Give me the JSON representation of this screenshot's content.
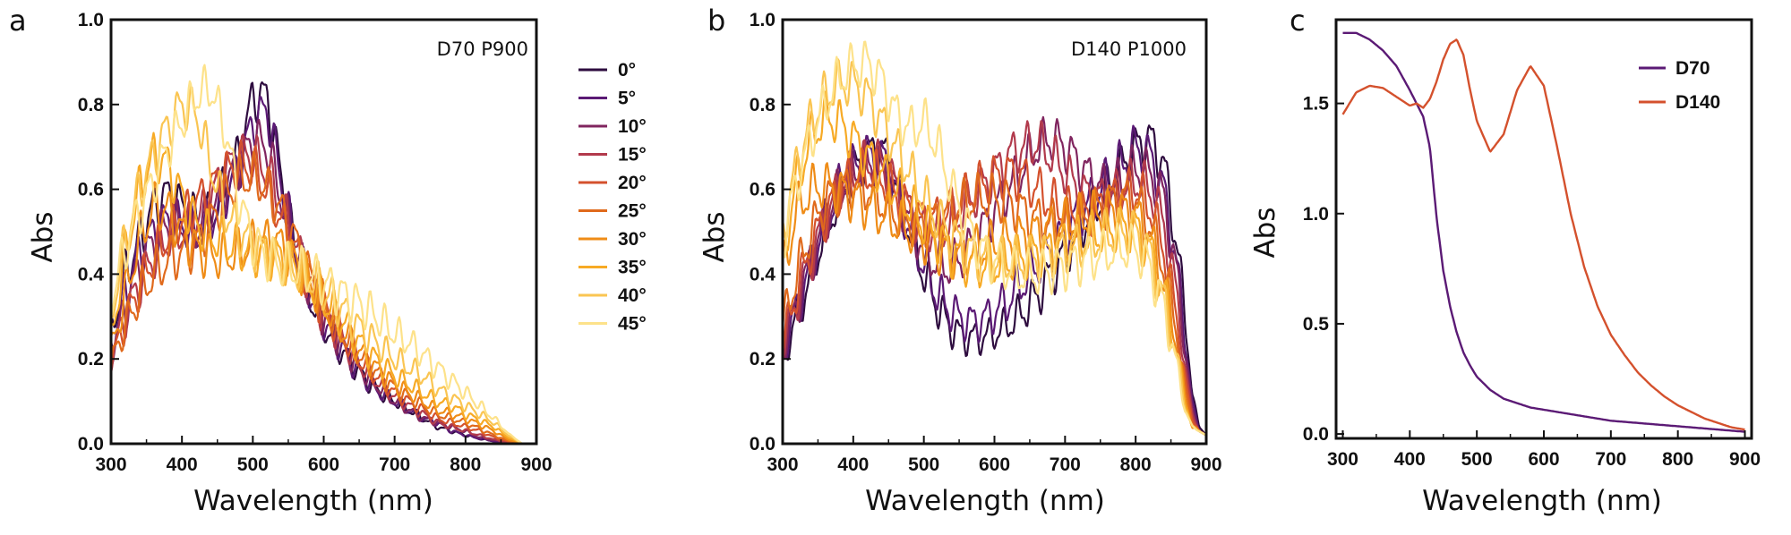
{
  "colors": {
    "angles": [
      "#2e0c3f",
      "#5b1a75",
      "#80255f",
      "#b23a4c",
      "#d4512d",
      "#e06a1c",
      "#ef8c17",
      "#f7aa25",
      "#fac552",
      "#fde28a"
    ],
    "d70": "#5b1a75",
    "d140": "#d4512d"
  },
  "chart_data": [
    {
      "type": "line",
      "panel": "a",
      "annotation": "D70 P900",
      "xlabel": "Wavelength (nm)",
      "ylabel": "Abs",
      "xlim": [
        300,
        900
      ],
      "ylim": [
        0,
        1.0
      ],
      "xticks": [
        "300",
        "400",
        "500",
        "600",
        "700",
        "800",
        "900"
      ],
      "yticks": [
        "0.0",
        "0.2",
        "0.4",
        "0.6",
        "0.8",
        "1.0"
      ],
      "legend": "outside-right",
      "x": [
        300,
        320,
        340,
        360,
        380,
        400,
        420,
        440,
        460,
        480,
        500,
        520,
        540,
        560,
        580,
        600,
        620,
        640,
        660,
        680,
        700,
        720,
        740,
        760,
        780,
        800,
        820,
        840,
        860,
        880
      ],
      "series": [
        {
          "name": "0°",
          "values": [
            0.26,
            0.4,
            0.48,
            0.56,
            0.59,
            0.56,
            0.53,
            0.53,
            0.6,
            0.68,
            0.82,
            0.82,
            0.63,
            0.45,
            0.35,
            0.28,
            0.23,
            0.19,
            0.15,
            0.12,
            0.1,
            0.08,
            0.06,
            0.04,
            0.03,
            0.02,
            0.012,
            0.006,
            0.002,
            0.0
          ]
        },
        {
          "name": "5°",
          "values": [
            0.23,
            0.36,
            0.45,
            0.5,
            0.53,
            0.52,
            0.49,
            0.52,
            0.58,
            0.65,
            0.76,
            0.79,
            0.62,
            0.46,
            0.36,
            0.29,
            0.24,
            0.19,
            0.15,
            0.12,
            0.1,
            0.08,
            0.06,
            0.05,
            0.03,
            0.02,
            0.012,
            0.006,
            0.002,
            0.0
          ]
        },
        {
          "name": "10°",
          "values": [
            0.21,
            0.32,
            0.42,
            0.48,
            0.52,
            0.52,
            0.5,
            0.54,
            0.6,
            0.66,
            0.72,
            0.7,
            0.58,
            0.46,
            0.37,
            0.3,
            0.25,
            0.2,
            0.16,
            0.13,
            0.1,
            0.08,
            0.06,
            0.05,
            0.04,
            0.03,
            0.015,
            0.008,
            0.003,
            0.0
          ]
        },
        {
          "name": "15°",
          "values": [
            0.2,
            0.3,
            0.38,
            0.44,
            0.48,
            0.5,
            0.52,
            0.58,
            0.64,
            0.68,
            0.68,
            0.64,
            0.56,
            0.47,
            0.38,
            0.31,
            0.26,
            0.21,
            0.17,
            0.14,
            0.11,
            0.09,
            0.07,
            0.05,
            0.04,
            0.03,
            0.02,
            0.01,
            0.003,
            0.0
          ]
        },
        {
          "name": "20°",
          "values": [
            0.19,
            0.29,
            0.37,
            0.44,
            0.49,
            0.53,
            0.57,
            0.6,
            0.64,
            0.66,
            0.65,
            0.6,
            0.53,
            0.46,
            0.39,
            0.32,
            0.27,
            0.22,
            0.18,
            0.15,
            0.12,
            0.1,
            0.08,
            0.06,
            0.05,
            0.04,
            0.03,
            0.015,
            0.005,
            0.0
          ]
        },
        {
          "name": "25°",
          "values": [
            0.19,
            0.28,
            0.35,
            0.4,
            0.43,
            0.45,
            0.47,
            0.52,
            0.58,
            0.62,
            0.63,
            0.6,
            0.55,
            0.48,
            0.4,
            0.33,
            0.28,
            0.23,
            0.19,
            0.16,
            0.13,
            0.11,
            0.09,
            0.07,
            0.06,
            0.05,
            0.035,
            0.02,
            0.007,
            0.0
          ]
        },
        {
          "name": "30°",
          "values": [
            0.22,
            0.35,
            0.48,
            0.56,
            0.55,
            0.5,
            0.46,
            0.44,
            0.44,
            0.45,
            0.47,
            0.48,
            0.47,
            0.43,
            0.38,
            0.33,
            0.28,
            0.24,
            0.2,
            0.17,
            0.14,
            0.12,
            0.1,
            0.08,
            0.07,
            0.06,
            0.045,
            0.03,
            0.01,
            0.0
          ]
        },
        {
          "name": "35°",
          "values": [
            0.25,
            0.45,
            0.6,
            0.68,
            0.66,
            0.58,
            0.52,
            0.49,
            0.47,
            0.46,
            0.45,
            0.45,
            0.44,
            0.42,
            0.38,
            0.34,
            0.3,
            0.26,
            0.22,
            0.19,
            0.16,
            0.14,
            0.12,
            0.1,
            0.09,
            0.07,
            0.055,
            0.04,
            0.015,
            0.0
          ]
        },
        {
          "name": "40°",
          "values": [
            0.3,
            0.48,
            0.6,
            0.68,
            0.75,
            0.8,
            0.78,
            0.66,
            0.55,
            0.5,
            0.47,
            0.45,
            0.43,
            0.41,
            0.39,
            0.36,
            0.33,
            0.29,
            0.26,
            0.23,
            0.2,
            0.18,
            0.16,
            0.13,
            0.11,
            0.09,
            0.07,
            0.05,
            0.02,
            0.0
          ]
        },
        {
          "name": "45°",
          "values": [
            0.34,
            0.46,
            0.55,
            0.62,
            0.7,
            0.76,
            0.82,
            0.84,
            0.75,
            0.58,
            0.48,
            0.44,
            0.42,
            0.41,
            0.4,
            0.38,
            0.36,
            0.34,
            0.32,
            0.29,
            0.26,
            0.24,
            0.21,
            0.18,
            0.15,
            0.12,
            0.09,
            0.06,
            0.025,
            0.0
          ]
        }
      ]
    },
    {
      "type": "line",
      "panel": "b",
      "annotation": "D140 P1000",
      "xlabel": "Wavelength (nm)",
      "ylabel": "Abs",
      "xlim": [
        300,
        900
      ],
      "ylim": [
        0,
        1.0
      ],
      "xticks": [
        "300",
        "400",
        "500",
        "600",
        "700",
        "800",
        "900"
      ],
      "yticks": [
        "0.0",
        "0.2",
        "0.4",
        "0.6",
        "0.8",
        "1.0"
      ],
      "x": [
        300,
        320,
        340,
        360,
        380,
        400,
        420,
        440,
        460,
        480,
        500,
        520,
        540,
        560,
        580,
        600,
        620,
        640,
        660,
        680,
        700,
        720,
        740,
        760,
        780,
        800,
        820,
        840,
        860,
        870,
        880,
        890,
        900
      ],
      "series": [
        {
          "name": "0°",
          "values": [
            0.2,
            0.3,
            0.4,
            0.5,
            0.58,
            0.64,
            0.68,
            0.7,
            0.62,
            0.5,
            0.4,
            0.32,
            0.27,
            0.25,
            0.25,
            0.26,
            0.28,
            0.31,
            0.35,
            0.4,
            0.45,
            0.5,
            0.55,
            0.6,
            0.65,
            0.7,
            0.72,
            0.66,
            0.45,
            0.3,
            0.12,
            0.04,
            0.02
          ]
        },
        {
          "name": "5°",
          "values": [
            0.21,
            0.32,
            0.42,
            0.52,
            0.6,
            0.65,
            0.68,
            0.68,
            0.6,
            0.5,
            0.42,
            0.35,
            0.31,
            0.29,
            0.29,
            0.31,
            0.34,
            0.38,
            0.42,
            0.46,
            0.5,
            0.54,
            0.58,
            0.62,
            0.66,
            0.7,
            0.68,
            0.6,
            0.4,
            0.25,
            0.1,
            0.03,
            0.02
          ]
        },
        {
          "name": "10°",
          "values": [
            0.22,
            0.33,
            0.43,
            0.52,
            0.6,
            0.64,
            0.66,
            0.66,
            0.6,
            0.52,
            0.46,
            0.42,
            0.42,
            0.45,
            0.5,
            0.55,
            0.6,
            0.65,
            0.7,
            0.72,
            0.7,
            0.66,
            0.62,
            0.6,
            0.62,
            0.65,
            0.64,
            0.58,
            0.38,
            0.22,
            0.08,
            0.03,
            0.02
          ]
        },
        {
          "name": "15°",
          "values": [
            0.23,
            0.34,
            0.44,
            0.53,
            0.6,
            0.64,
            0.66,
            0.66,
            0.61,
            0.55,
            0.51,
            0.5,
            0.52,
            0.56,
            0.6,
            0.64,
            0.68,
            0.7,
            0.71,
            0.68,
            0.64,
            0.6,
            0.58,
            0.58,
            0.6,
            0.62,
            0.6,
            0.52,
            0.33,
            0.18,
            0.07,
            0.03,
            0.02
          ]
        },
        {
          "name": "20°",
          "values": [
            0.24,
            0.36,
            0.46,
            0.54,
            0.6,
            0.63,
            0.64,
            0.63,
            0.59,
            0.55,
            0.53,
            0.53,
            0.55,
            0.58,
            0.61,
            0.63,
            0.64,
            0.63,
            0.6,
            0.57,
            0.55,
            0.54,
            0.55,
            0.57,
            0.59,
            0.6,
            0.56,
            0.46,
            0.28,
            0.15,
            0.06,
            0.03,
            0.02
          ]
        },
        {
          "name": "25°",
          "values": [
            0.28,
            0.4,
            0.5,
            0.57,
            0.6,
            0.61,
            0.6,
            0.57,
            0.54,
            0.52,
            0.52,
            0.53,
            0.55,
            0.57,
            0.58,
            0.58,
            0.57,
            0.55,
            0.53,
            0.52,
            0.52,
            0.53,
            0.55,
            0.57,
            0.58,
            0.57,
            0.52,
            0.42,
            0.25,
            0.13,
            0.05,
            0.03,
            0.02
          ]
        },
        {
          "name": "30°",
          "values": [
            0.4,
            0.55,
            0.6,
            0.61,
            0.6,
            0.58,
            0.56,
            0.54,
            0.52,
            0.5,
            0.48,
            0.46,
            0.45,
            0.45,
            0.46,
            0.47,
            0.48,
            0.49,
            0.5,
            0.51,
            0.52,
            0.53,
            0.54,
            0.55,
            0.55,
            0.54,
            0.49,
            0.38,
            0.22,
            0.11,
            0.04,
            0.03,
            0.02
          ]
        },
        {
          "name": "35°",
          "values": [
            0.45,
            0.62,
            0.72,
            0.77,
            0.76,
            0.72,
            0.68,
            0.64,
            0.6,
            0.56,
            0.52,
            0.48,
            0.45,
            0.43,
            0.42,
            0.42,
            0.43,
            0.44,
            0.45,
            0.46,
            0.47,
            0.48,
            0.49,
            0.5,
            0.51,
            0.51,
            0.46,
            0.36,
            0.2,
            0.1,
            0.04,
            0.03,
            0.02
          ]
        },
        {
          "name": "40°",
          "values": [
            0.5,
            0.66,
            0.76,
            0.82,
            0.85,
            0.85,
            0.82,
            0.76,
            0.7,
            0.64,
            0.58,
            0.53,
            0.49,
            0.46,
            0.44,
            0.43,
            0.43,
            0.43,
            0.44,
            0.45,
            0.46,
            0.47,
            0.48,
            0.49,
            0.5,
            0.5,
            0.45,
            0.34,
            0.19,
            0.09,
            0.04,
            0.03,
            0.02
          ]
        },
        {
          "name": "45°",
          "values": [
            0.48,
            0.62,
            0.72,
            0.8,
            0.86,
            0.89,
            0.9,
            0.86,
            0.78,
            0.74,
            0.76,
            0.7,
            0.6,
            0.52,
            0.46,
            0.43,
            0.41,
            0.4,
            0.4,
            0.41,
            0.42,
            0.43,
            0.44,
            0.45,
            0.46,
            0.46,
            0.42,
            0.32,
            0.17,
            0.08,
            0.04,
            0.03,
            0.02
          ]
        }
      ]
    },
    {
      "type": "line",
      "panel": "c",
      "xlabel": "Wavelength (nm)",
      "ylabel": "Abs",
      "xlim": [
        290,
        910
      ],
      "ylim": [
        -0.02,
        1.88
      ],
      "xticks": [
        "300",
        "400",
        "500",
        "600",
        "700",
        "800",
        "900"
      ],
      "yticks": [
        "0.0",
        "0.5",
        "1.0",
        "1.5"
      ],
      "legend": "top-right",
      "x": [
        300,
        320,
        340,
        360,
        380,
        400,
        410,
        420,
        430,
        440,
        450,
        460,
        470,
        480,
        490,
        500,
        520,
        540,
        560,
        580,
        600,
        620,
        640,
        660,
        680,
        700,
        720,
        740,
        760,
        780,
        800,
        820,
        840,
        860,
        880,
        900
      ],
      "series": [
        {
          "name": "D70",
          "values": [
            1.82,
            1.82,
            1.79,
            1.74,
            1.67,
            1.56,
            1.5,
            1.44,
            1.3,
            0.98,
            0.74,
            0.58,
            0.46,
            0.37,
            0.31,
            0.26,
            0.2,
            0.16,
            0.14,
            0.12,
            0.11,
            0.1,
            0.09,
            0.08,
            0.07,
            0.06,
            0.055,
            0.05,
            0.045,
            0.04,
            0.035,
            0.03,
            0.025,
            0.02,
            0.015,
            0.01
          ]
        },
        {
          "name": "D140",
          "values": [
            1.45,
            1.55,
            1.58,
            1.57,
            1.53,
            1.49,
            1.5,
            1.48,
            1.52,
            1.6,
            1.7,
            1.77,
            1.79,
            1.72,
            1.56,
            1.42,
            1.28,
            1.36,
            1.56,
            1.67,
            1.58,
            1.3,
            1.0,
            0.76,
            0.58,
            0.45,
            0.36,
            0.28,
            0.22,
            0.17,
            0.13,
            0.1,
            0.07,
            0.05,
            0.03,
            0.02
          ]
        }
      ]
    }
  ]
}
